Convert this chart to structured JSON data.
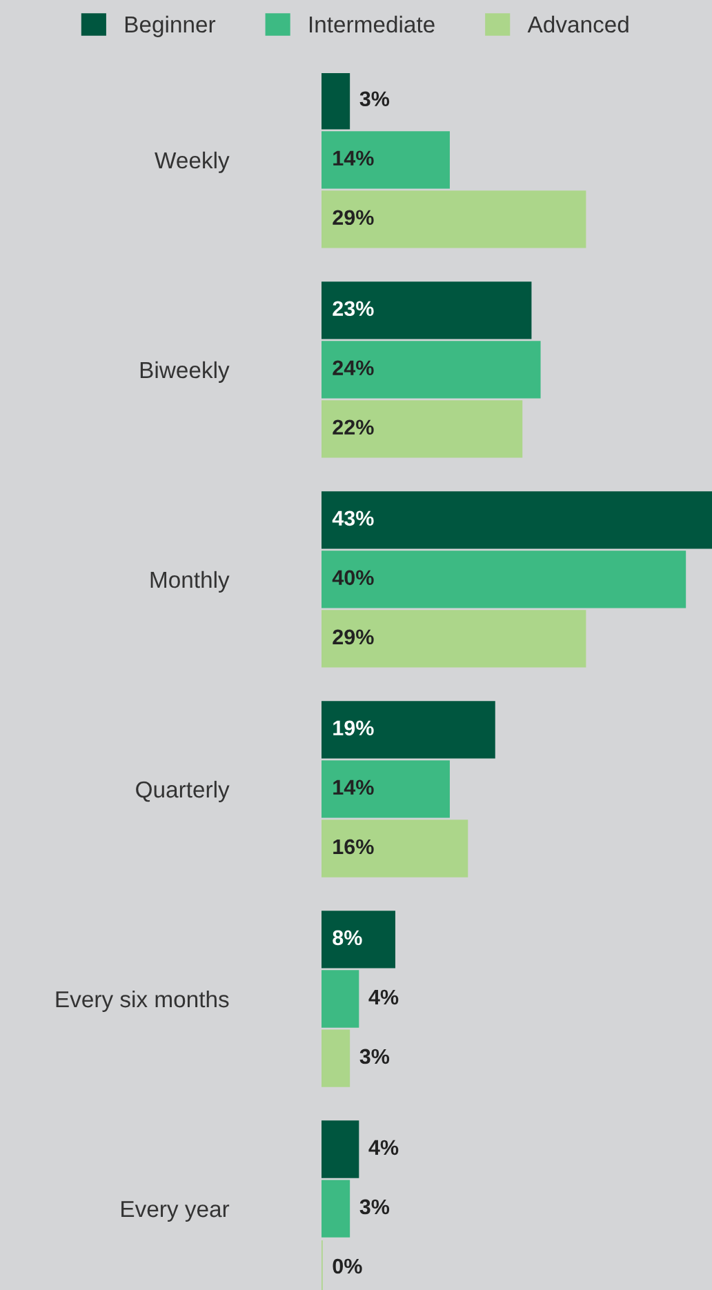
{
  "chart_data": {
    "type": "bar",
    "orientation": "horizontal",
    "legend": "top",
    "grid": false,
    "categories": [
      "Weekly",
      "Biweekly",
      "Monthly",
      "Quarterly",
      "Every six months",
      "Every year"
    ],
    "series": [
      {
        "name": "Beginner",
        "color": "#00563f",
        "values": [
          3,
          23,
          43,
          19,
          8,
          4
        ],
        "value_labels": [
          "3%",
          "23%",
          "43%",
          "19%",
          "8%",
          "4%"
        ]
      },
      {
        "name": "Intermediate",
        "color": "#3dba83",
        "values": [
          14,
          24,
          40,
          14,
          4,
          3
        ],
        "value_labels": [
          "14%",
          "24%",
          "40%",
          "14%",
          "4%",
          "3%"
        ]
      },
      {
        "name": "Advanced",
        "color": "#acd68a",
        "values": [
          29,
          22,
          29,
          16,
          3,
          0
        ],
        "value_labels": [
          "29%",
          "22%",
          "29%",
          "16%",
          "3%",
          "0%"
        ]
      }
    ]
  }
}
